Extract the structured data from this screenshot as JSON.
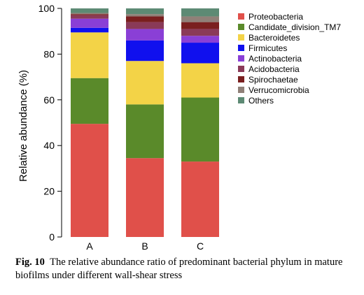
{
  "chart_data": {
    "type": "bar",
    "stacked": true,
    "categories": [
      "A",
      "B",
      "C"
    ],
    "ylabel": "Relative abundance (%)",
    "ylim": [
      0,
      100
    ],
    "yticks": [
      0,
      20,
      40,
      60,
      80,
      100
    ],
    "legend_position": "right",
    "series": [
      {
        "name": "Proteobacteria",
        "color": "#e0504a",
        "values": [
          49.5,
          34.5,
          33
        ]
      },
      {
        "name": "Candidate_division_TM7",
        "color": "#5a8a2a",
        "values": [
          20,
          23.5,
          28
        ]
      },
      {
        "name": "Bacteroidetes",
        "color": "#f3d347",
        "values": [
          20,
          19,
          15
        ]
      },
      {
        "name": "Firmicutes",
        "color": "#1010ee",
        "values": [
          2,
          9,
          9
        ]
      },
      {
        "name": "Actinobacteria",
        "color": "#8a3fd6",
        "values": [
          4,
          5,
          3
        ]
      },
      {
        "name": "Acidobacteria",
        "color": "#8a3a58",
        "values": [
          1.5,
          3,
          3
        ]
      },
      {
        "name": "Spirochaetae",
        "color": "#7a1f1f",
        "values": [
          0.5,
          2.5,
          3
        ]
      },
      {
        "name": "Verrucomicrobia",
        "color": "#908078",
        "values": [
          0.5,
          1,
          2.5
        ]
      },
      {
        "name": "Others",
        "color": "#5d8a74",
        "values": [
          2,
          2.5,
          3.5
        ]
      }
    ]
  },
  "caption": {
    "label": "Fig. 10",
    "text": "The relative abundance ratio of predominant bacterial phylum in mature biofilms under different wall-shear stress"
  }
}
